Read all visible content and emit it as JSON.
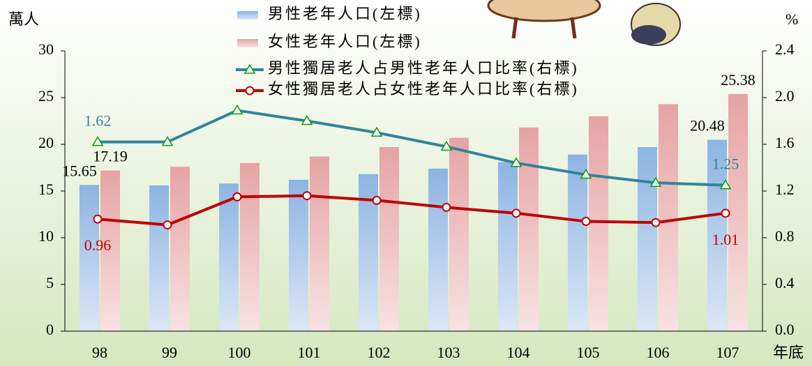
{
  "chart_data": {
    "type": "bar-line",
    "ylabel": "萬人",
    "y2label": "%",
    "xlabel": "年底",
    "categories": [
      "98",
      "99",
      "100",
      "101",
      "102",
      "103",
      "104",
      "105",
      "106",
      "107"
    ],
    "series": [
      {
        "name": "男性老年人口(左標)",
        "type": "bar",
        "color": "#8db4e2",
        "values": [
          15.65,
          15.6,
          15.8,
          16.2,
          16.8,
          17.4,
          18.1,
          18.9,
          19.7,
          20.48
        ],
        "value_labels": [
          "15.65",
          null,
          null,
          null,
          null,
          null,
          null,
          null,
          null,
          "20.48"
        ]
      },
      {
        "name": "女性老年人口(左標)",
        "type": "bar",
        "color": "#e6a3a3",
        "values": [
          17.19,
          17.6,
          18.0,
          18.7,
          19.7,
          20.7,
          21.8,
          23.0,
          24.3,
          25.38
        ],
        "value_labels": [
          "17.19",
          null,
          null,
          null,
          null,
          null,
          null,
          null,
          null,
          "25.38"
        ]
      },
      {
        "name": "男性獨居老人占男性老年人口比率(右標)",
        "type": "line",
        "axis": "y2",
        "color": "#31849b",
        "marker": "triangle",
        "marker_color": "#00a000",
        "label_color": "#31849b",
        "values": [
          1.62,
          1.62,
          1.89,
          1.8,
          1.7,
          1.58,
          1.44,
          1.34,
          1.27,
          1.25
        ],
        "value_labels": [
          "1.62",
          null,
          null,
          null,
          null,
          null,
          null,
          null,
          null,
          "1.25"
        ]
      },
      {
        "name": "女性獨居老人占女性老年人口比率(右標)",
        "type": "line",
        "axis": "y2",
        "color": "#c00000",
        "marker": "circle",
        "marker_color": "#c00000",
        "label_color": "#c00000",
        "values": [
          0.96,
          0.91,
          1.15,
          1.16,
          1.12,
          1.06,
          1.01,
          0.94,
          0.93,
          1.01
        ],
        "value_labels": [
          "0.96",
          null,
          null,
          null,
          null,
          null,
          null,
          null,
          null,
          "1.01"
        ]
      }
    ],
    "ylim": [
      0,
      30
    ],
    "yticks": [
      0,
      5,
      10,
      15,
      20,
      25,
      30
    ],
    "y2lim": [
      0,
      2.4
    ],
    "y2ticks": [
      {
        "value": 0,
        "label": "0.0"
      },
      0.4,
      0.8,
      1.2,
      1.6,
      {
        "value": 2,
        "label": "2.0"
      },
      {
        "value": 2.4,
        "label": "2.4"
      }
    ]
  }
}
